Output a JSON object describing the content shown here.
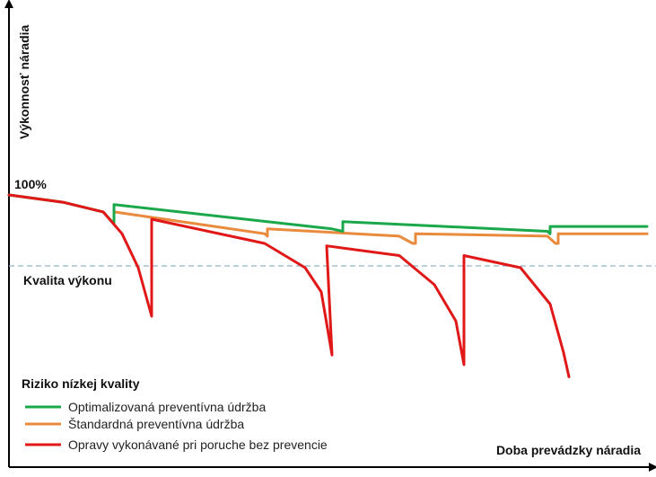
{
  "chart_data": {
    "type": "line",
    "ylabel": "Výkonnosť náradia",
    "xlabel": "Doba prevádzky náradia",
    "y_reference_label": "100%",
    "threshold_label": "Kvalita výkonu",
    "legend_title": "Riziko nízkej kvality",
    "legend_placement": "bottom-left",
    "grid": false,
    "axes_numeric_ticks": false,
    "series": [
      {
        "name": "Optimalizovaná preventívna údržba",
        "color": "#1aa84b",
        "points": [
          [
            0,
            100
          ],
          [
            20,
            97
          ],
          [
            35,
            93
          ],
          [
            39,
            88
          ],
          [
            39,
            96
          ],
          [
            120,
            86
          ],
          [
            124,
            85
          ],
          [
            124,
            89
          ],
          [
            200,
            85
          ],
          [
            201,
            84
          ],
          [
            201,
            87
          ],
          [
            237,
            87
          ]
        ]
      },
      {
        "name": "Štandardná preventívna údržba",
        "color": "#e98a3c",
        "points": [
          [
            0,
            100
          ],
          [
            20,
            97
          ],
          [
            35,
            93
          ],
          [
            39,
            88
          ],
          [
            39,
            93
          ],
          [
            95,
            84
          ],
          [
            96,
            83
          ],
          [
            96,
            86
          ],
          [
            145,
            83
          ],
          [
            150,
            80
          ],
          [
            151,
            80
          ],
          [
            151,
            84
          ],
          [
            200,
            83
          ],
          [
            203,
            80
          ],
          [
            204,
            80
          ],
          [
            204,
            84
          ],
          [
            237,
            84
          ]
        ]
      },
      {
        "name": "Opravy vykonávané pri poruche bez prevencie",
        "color": "#e01818",
        "points": [
          [
            0,
            100
          ],
          [
            20,
            97
          ],
          [
            35,
            93
          ],
          [
            42,
            84
          ],
          [
            48,
            70
          ],
          [
            53,
            50
          ],
          [
            53,
            90
          ],
          [
            95,
            80
          ],
          [
            110,
            70
          ],
          [
            116,
            60
          ],
          [
            120,
            34
          ],
          [
            118,
            79
          ],
          [
            145,
            75
          ],
          [
            158,
            63
          ],
          [
            166,
            48
          ],
          [
            169,
            30
          ],
          [
            169,
            75
          ],
          [
            190,
            70
          ],
          [
            201,
            55
          ],
          [
            206,
            35
          ],
          [
            208,
            25
          ]
        ]
      }
    ]
  }
}
